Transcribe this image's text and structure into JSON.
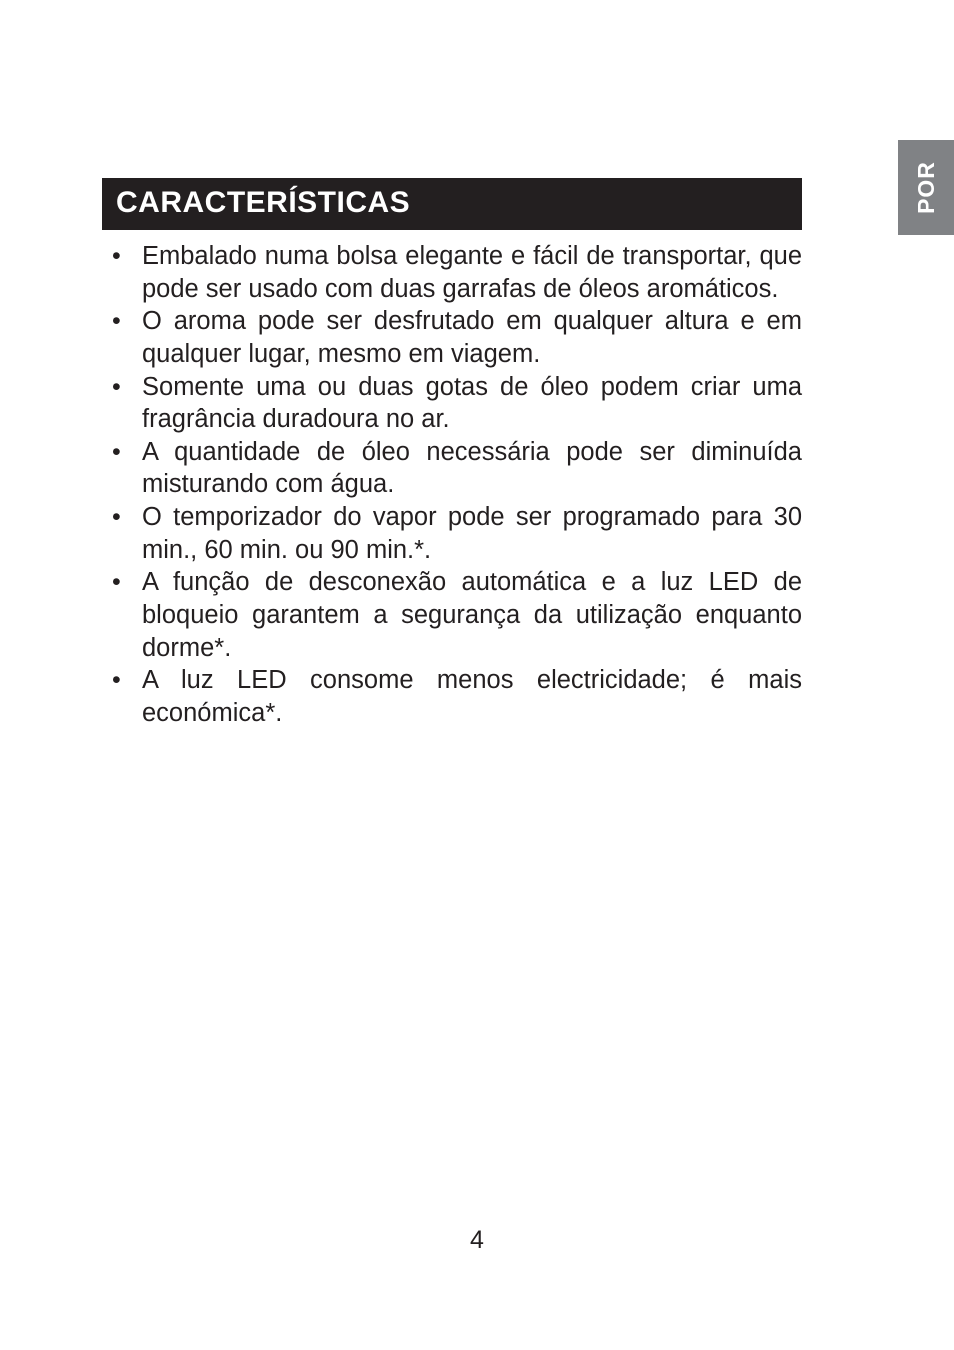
{
  "side_tab": {
    "label": "POR"
  },
  "section": {
    "title": "CARACTERÍSTICAS"
  },
  "features": {
    "items": [
      "Embalado numa bolsa elegante e fácil de transportar, que pode ser usado com duas garrafas de óleos aromáticos.",
      "O aroma pode ser desfrutado em qualquer altura e em qualquer lugar, mesmo em viagem.",
      "Somente uma ou duas gotas de óleo podem criar uma fragrância duradoura no ar.",
      "A quantidade de óleo necessária pode ser diminuída misturando com água.",
      "O temporizador do vapor pode ser programado para 30 min., 60 min. ou 90 min.*.",
      "A função de desconexão automática e a luz LED de bloqueio garantem a segurança da utilização enquanto dorme*.",
      "A luz LED consome menos electricidade; é mais económica*."
    ]
  },
  "page": {
    "number": "4"
  },
  "colors": {
    "tab_bg": "#808285",
    "header_bg": "#231f20",
    "text": "#231f20",
    "page_bg": "#ffffff"
  },
  "typography": {
    "header_fontsize": 30,
    "body_fontsize": 25.5,
    "tab_fontsize": 23,
    "page_num_fontsize": 25
  }
}
